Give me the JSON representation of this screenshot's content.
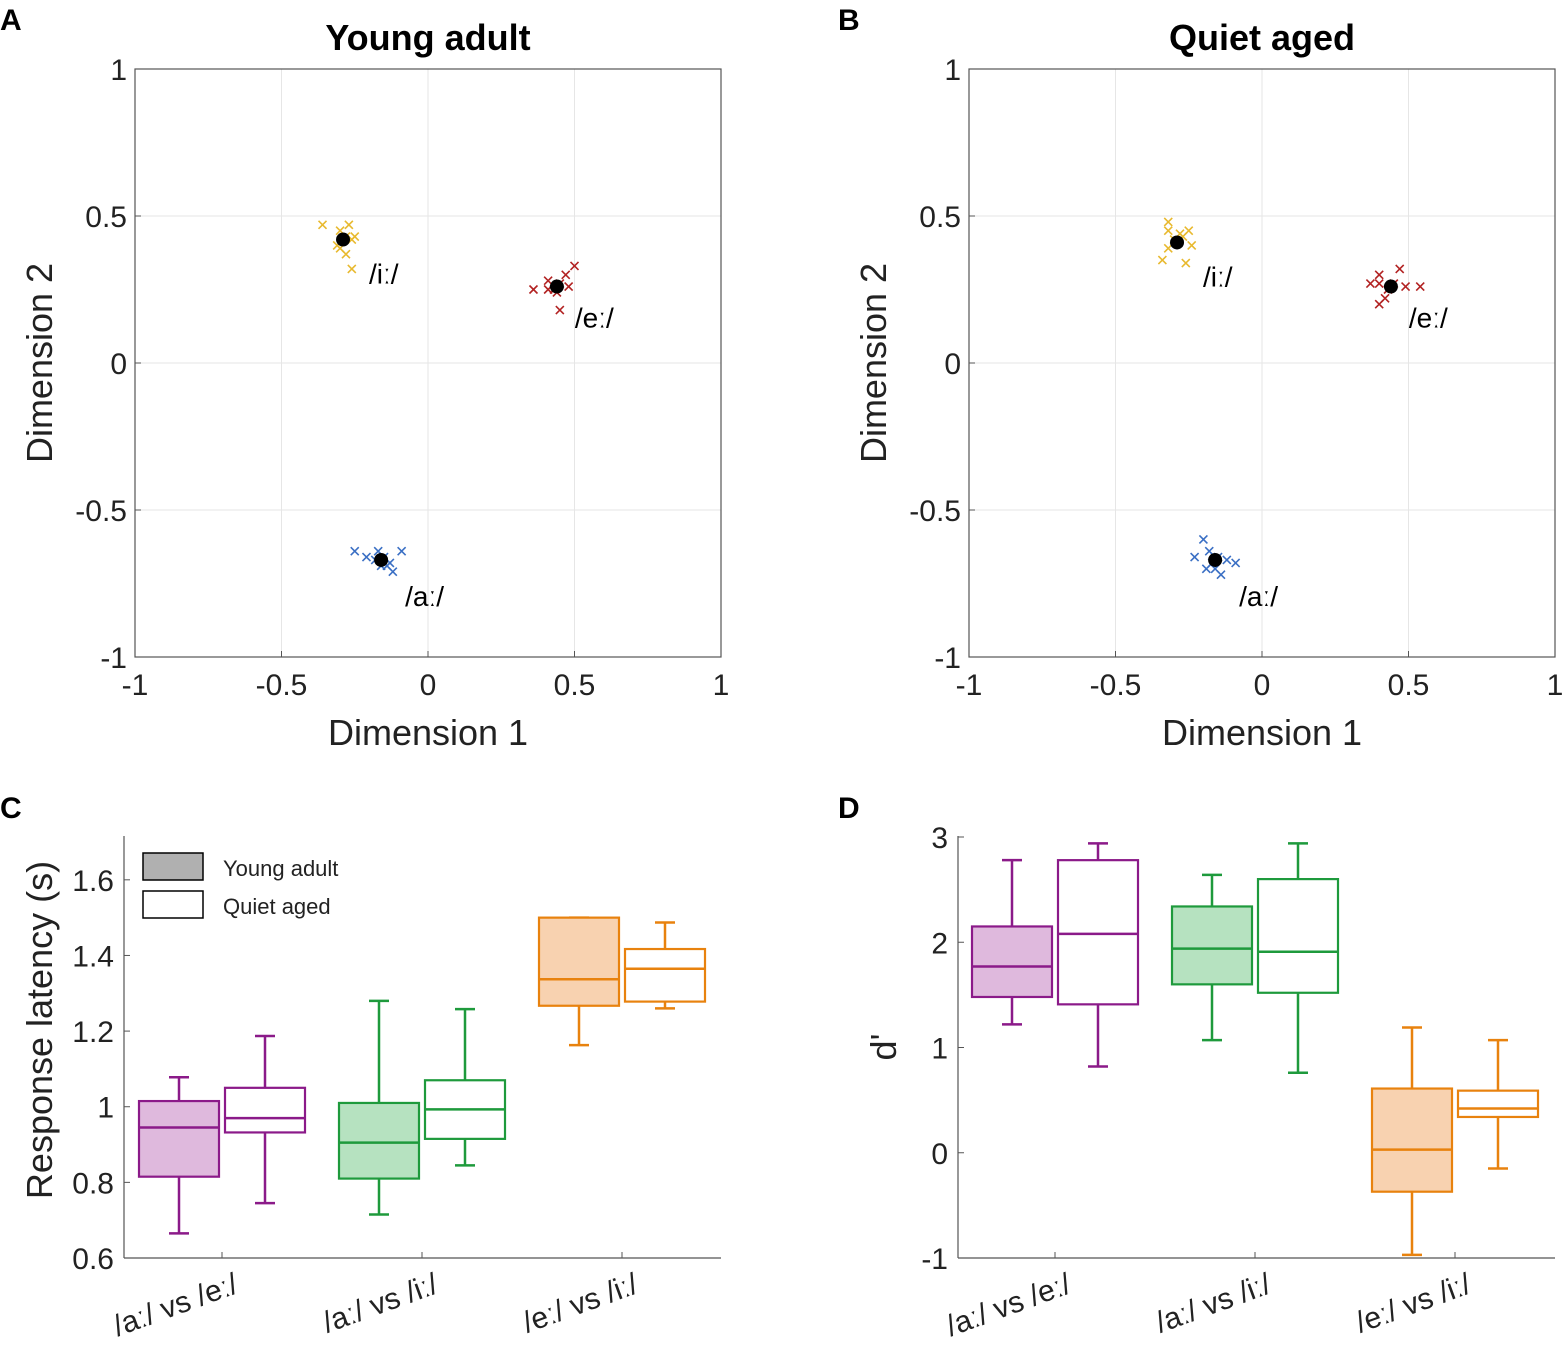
{
  "chart_data": [
    {
      "panel": "A",
      "type": "scatter",
      "title": "Young adult",
      "xlabel": "Dimension 1",
      "ylabel": "Dimension 2",
      "xlim": [
        -1,
        1
      ],
      "ylim": [
        -1,
        1
      ],
      "xticks": [
        "-1",
        "-0.5",
        "0",
        "0.5",
        "1"
      ],
      "yticks": [
        "1",
        "0.5",
        "0",
        "-0.5",
        "-1"
      ],
      "grid": true,
      "clusters": [
        {
          "label": "/iː/",
          "color": "#e8b92e",
          "centroid": [
            -0.29,
            0.42
          ],
          "points": [
            [
              -0.36,
              0.47
            ],
            [
              -0.3,
              0.45
            ],
            [
              -0.27,
              0.47
            ],
            [
              -0.28,
              0.43
            ],
            [
              -0.31,
              0.4
            ],
            [
              -0.26,
              0.42
            ],
            [
              -0.28,
              0.37
            ],
            [
              -0.26,
              0.32
            ],
            [
              -0.3,
              0.39
            ],
            [
              -0.25,
              0.43
            ]
          ]
        },
        {
          "label": "/eː/",
          "color": "#b22222",
          "centroid": [
            0.44,
            0.26
          ],
          "points": [
            [
              0.36,
              0.25
            ],
            [
              0.41,
              0.25
            ],
            [
              0.41,
              0.28
            ],
            [
              0.44,
              0.24
            ],
            [
              0.45,
              0.27
            ],
            [
              0.48,
              0.26
            ],
            [
              0.47,
              0.3
            ],
            [
              0.5,
              0.33
            ],
            [
              0.45,
              0.18
            ],
            [
              0.43,
              0.25
            ]
          ]
        },
        {
          "label": "/aː/",
          "color": "#3a6fc4",
          "centroid": [
            -0.16,
            -0.67
          ],
          "points": [
            [
              -0.25,
              -0.64
            ],
            [
              -0.21,
              -0.66
            ],
            [
              -0.17,
              -0.64
            ],
            [
              -0.16,
              -0.69
            ],
            [
              -0.14,
              -0.69
            ],
            [
              -0.12,
              -0.71
            ],
            [
              -0.09,
              -0.64
            ],
            [
              -0.18,
              -0.67
            ],
            [
              -0.13,
              -0.68
            ],
            [
              -0.15,
              -0.66
            ]
          ]
        }
      ]
    },
    {
      "panel": "B",
      "type": "scatter",
      "title": "Quiet aged",
      "xlabel": "Dimension 1",
      "ylabel": "Dimension 2",
      "xlim": [
        -1,
        1
      ],
      "ylim": [
        -1,
        1
      ],
      "xticks": [
        "-1",
        "-0.5",
        "0",
        "0.5",
        "1"
      ],
      "yticks": [
        "1",
        "0.5",
        "0",
        "-0.5",
        "-1"
      ],
      "grid": true,
      "clusters": [
        {
          "label": "/iː/",
          "color": "#e8b92e",
          "centroid": [
            -0.29,
            0.41
          ],
          "points": [
            [
              -0.32,
              0.48
            ],
            [
              -0.32,
              0.45
            ],
            [
              -0.25,
              0.45
            ],
            [
              -0.27,
              0.43
            ],
            [
              -0.32,
              0.39
            ],
            [
              -0.24,
              0.4
            ],
            [
              -0.34,
              0.35
            ],
            [
              -0.26,
              0.34
            ],
            [
              -0.3,
              0.42
            ],
            [
              -0.28,
              0.44
            ]
          ]
        },
        {
          "label": "/eː/",
          "color": "#b22222",
          "centroid": [
            0.44,
            0.26
          ],
          "points": [
            [
              0.37,
              0.27
            ],
            [
              0.4,
              0.3
            ],
            [
              0.4,
              0.27
            ],
            [
              0.47,
              0.32
            ],
            [
              0.49,
              0.26
            ],
            [
              0.54,
              0.26
            ],
            [
              0.42,
              0.22
            ],
            [
              0.4,
              0.2
            ],
            [
              0.43,
              0.25
            ],
            [
              0.45,
              0.27
            ]
          ]
        },
        {
          "label": "/aː/",
          "color": "#3a6fc4",
          "centroid": [
            -0.16,
            -0.67
          ],
          "points": [
            [
              -0.2,
              -0.6
            ],
            [
              -0.18,
              -0.64
            ],
            [
              -0.23,
              -0.66
            ],
            [
              -0.19,
              -0.7
            ],
            [
              -0.16,
              -0.7
            ],
            [
              -0.14,
              -0.72
            ],
            [
              -0.12,
              -0.67
            ],
            [
              -0.09,
              -0.68
            ],
            [
              -0.17,
              -0.68
            ],
            [
              -0.15,
              -0.66
            ]
          ]
        }
      ]
    },
    {
      "panel": "C",
      "type": "boxplot",
      "ylabel": "Response latency (s)",
      "ylim": [
        0.6,
        1.7
      ],
      "yticks": [
        "1.6",
        "1.4",
        "1.2",
        "1",
        "0.8",
        "0.6"
      ],
      "categories": [
        "/aː/ vs /eː/",
        "/aː/ vs /iː/",
        "/eː/ vs /iː/"
      ],
      "category_colors": [
        "#8b1a89",
        "#1e9a3c",
        "#e8820e"
      ],
      "category_fills": [
        "#dfb9dd",
        "#b6e2c0",
        "#f8d2b0"
      ],
      "legend": [
        "Young adult",
        "Quiet aged"
      ],
      "series": [
        {
          "name": "Young adult",
          "filled": true,
          "boxes": [
            {
              "min": 0.665,
              "q1": 0.815,
              "median": 0.945,
              "q3": 1.015,
              "max": 1.078
            },
            {
              "min": 0.715,
              "q1": 0.81,
              "median": 0.905,
              "q3": 1.01,
              "max": 1.28
            },
            {
              "min": 1.163,
              "q1": 1.267,
              "median": 1.337,
              "q3": 1.5,
              "max": 1.5
            }
          ]
        },
        {
          "name": "Quiet aged",
          "filled": false,
          "boxes": [
            {
              "min": 0.745,
              "q1": 0.932,
              "median": 0.97,
              "q3": 1.05,
              "max": 1.187
            },
            {
              "min": 0.845,
              "q1": 0.915,
              "median": 0.993,
              "q3": 1.07,
              "max": 1.258
            },
            {
              "min": 1.26,
              "q1": 1.278,
              "median": 1.365,
              "q3": 1.417,
              "max": 1.487
            }
          ]
        }
      ]
    },
    {
      "panel": "D",
      "type": "boxplot",
      "ylabel": "d'",
      "ylim": [
        -1,
        3
      ],
      "yticks": [
        "3",
        "2",
        "1",
        "0",
        "-1"
      ],
      "categories": [
        "/aː/ vs /eː/",
        "/aː/ vs /iː/",
        "/eː/ vs /iː/"
      ],
      "category_colors": [
        "#8b1a89",
        "#1e9a3c",
        "#e8820e"
      ],
      "category_fills": [
        "#dfb9dd",
        "#b6e2c0",
        "#f8d2b0"
      ],
      "series": [
        {
          "name": "Young adult",
          "filled": true,
          "boxes": [
            {
              "min": 1.22,
              "q1": 1.48,
              "median": 1.77,
              "q3": 2.15,
              "max": 2.78
            },
            {
              "min": 1.07,
              "q1": 1.6,
              "median": 1.94,
              "q3": 2.34,
              "max": 2.64
            },
            {
              "min": -0.97,
              "q1": -0.37,
              "median": 0.03,
              "q3": 0.61,
              "max": 1.19
            }
          ]
        },
        {
          "name": "Quiet aged",
          "filled": false,
          "boxes": [
            {
              "min": 0.82,
              "q1": 1.41,
              "median": 2.08,
              "q3": 2.78,
              "max": 2.94
            },
            {
              "min": 0.76,
              "q1": 1.52,
              "median": 1.91,
              "q3": 2.6,
              "max": 2.94
            },
            {
              "min": -0.15,
              "q1": 0.34,
              "median": 0.42,
              "q3": 0.59,
              "max": 1.07
            }
          ]
        }
      ]
    }
  ]
}
